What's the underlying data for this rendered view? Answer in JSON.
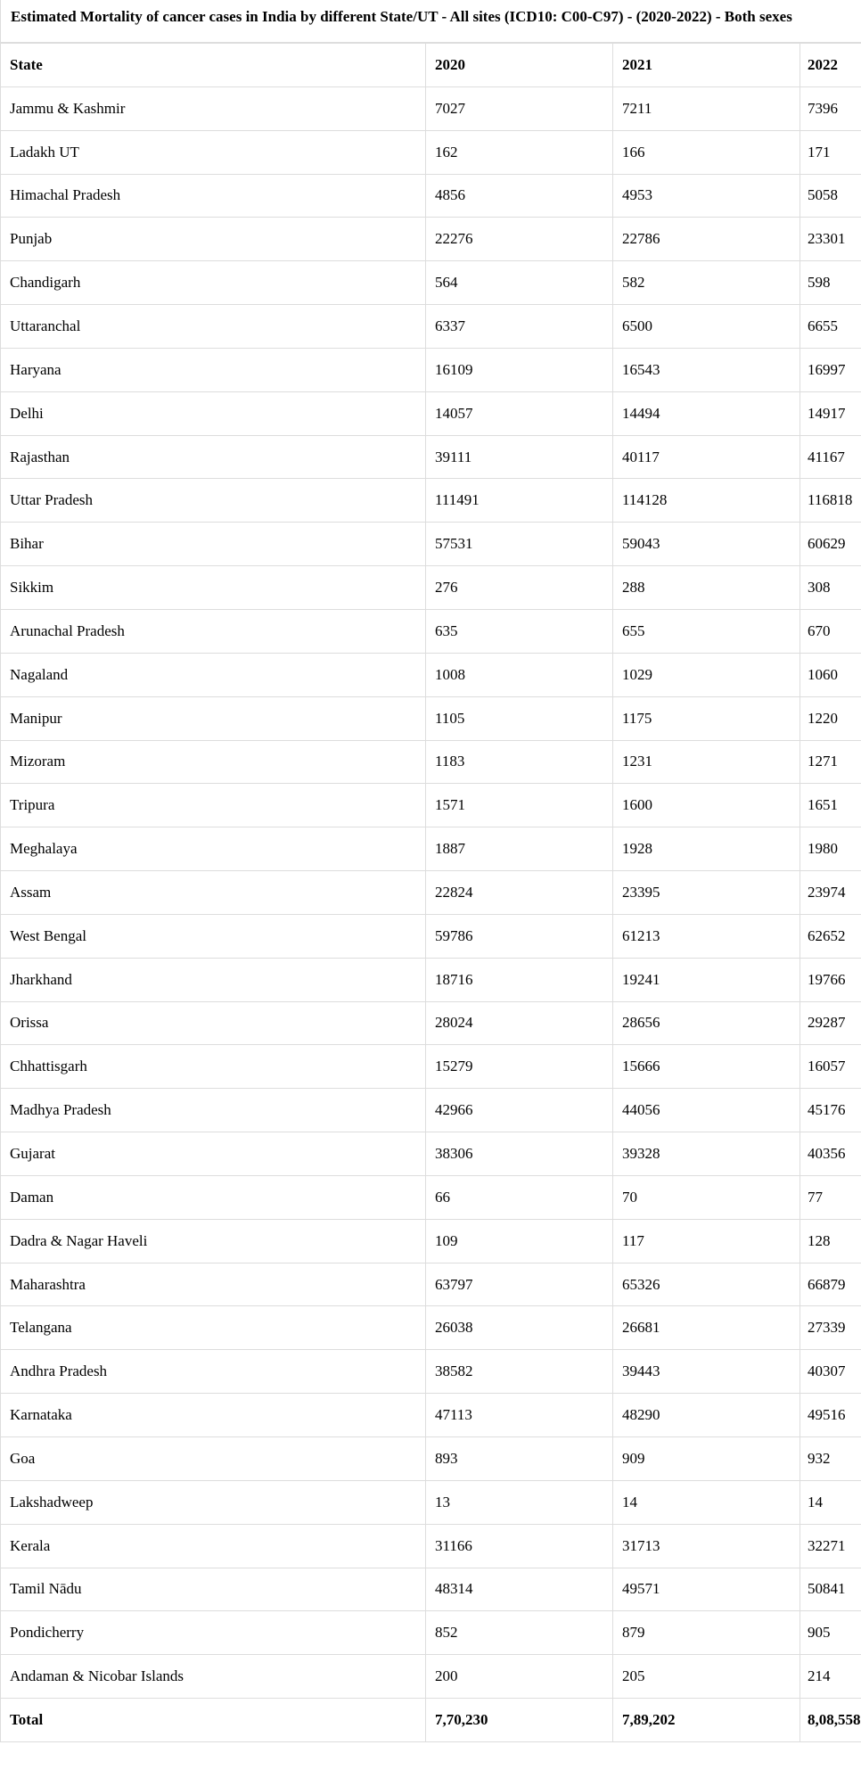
{
  "title": "Estimated Mortality of cancer cases in India by different State/UT - All sites (ICD10: C00-C97) - (2020-2022) - Both sexes",
  "headers": [
    "State",
    "2020",
    "2021",
    "2022"
  ],
  "rows": [
    [
      "Jammu & Kashmir",
      "7027",
      "7211",
      "7396"
    ],
    [
      "Ladakh UT",
      "162",
      "166",
      "171"
    ],
    [
      "Himachal Pradesh",
      "4856",
      "4953",
      "5058"
    ],
    [
      "Punjab",
      "22276",
      "22786",
      "23301"
    ],
    [
      "Chandigarh",
      "564",
      "582",
      "598"
    ],
    [
      "Uttaranchal",
      "6337",
      "6500",
      "6655"
    ],
    [
      "Haryana",
      "16109",
      "16543",
      "16997"
    ],
    [
      "Delhi",
      "14057",
      "14494",
      "14917"
    ],
    [
      "Rajasthan",
      "39111",
      "40117",
      "41167"
    ],
    [
      "Uttar Pradesh",
      "111491",
      "114128",
      "116818"
    ],
    [
      "Bihar",
      "57531",
      "59043",
      "60629"
    ],
    [
      "Sikkim",
      "276",
      "288",
      "308"
    ],
    [
      "Arunachal Pradesh",
      "635",
      "655",
      "670"
    ],
    [
      "Nagaland",
      "1008",
      "1029",
      "1060"
    ],
    [
      "Manipur",
      "1105",
      "1175",
      "1220"
    ],
    [
      "Mizoram",
      "1183",
      "1231",
      "1271"
    ],
    [
      "Tripura",
      "1571",
      "1600",
      "1651"
    ],
    [
      "Meghalaya",
      "1887",
      "1928",
      "1980"
    ],
    [
      "Assam",
      "22824",
      "23395",
      "23974"
    ],
    [
      "West Bengal",
      "59786",
      "61213",
      "62652"
    ],
    [
      "Jharkhand",
      "18716",
      "19241",
      "19766"
    ],
    [
      "Orissa",
      "28024",
      "28656",
      "29287"
    ],
    [
      "Chhattisgarh",
      "15279",
      "15666",
      "16057"
    ],
    [
      "Madhya Pradesh",
      "42966",
      "44056",
      "45176"
    ],
    [
      "Gujarat",
      "38306",
      "39328",
      "40356"
    ],
    [
      "Daman",
      "66",
      "70",
      "77"
    ],
    [
      "Dadra & Nagar Haveli",
      "109",
      "117",
      "128"
    ],
    [
      "Maharashtra",
      "63797",
      "65326",
      "66879"
    ],
    [
      "Telangana",
      "26038",
      "26681",
      "27339"
    ],
    [
      "Andhra Pradesh",
      "38582",
      "39443",
      "40307"
    ],
    [
      "Karnataka",
      "47113",
      "48290",
      "49516"
    ],
    [
      "Goa",
      "893",
      "909",
      "932"
    ],
    [
      "Lakshadweep",
      "13",
      "14",
      "14"
    ],
    [
      "Kerala",
      "31166",
      "31713",
      "32271"
    ],
    [
      "Tamil Nādu",
      "48314",
      "49571",
      "50841"
    ],
    [
      "Pondicherry",
      "852",
      "879",
      "905"
    ],
    [
      "Andaman & Nicobar Islands",
      "200",
      "205",
      "214"
    ]
  ],
  "total": [
    "Total",
    "7,70,230",
    "7,89,202",
    "8,08,558"
  ]
}
